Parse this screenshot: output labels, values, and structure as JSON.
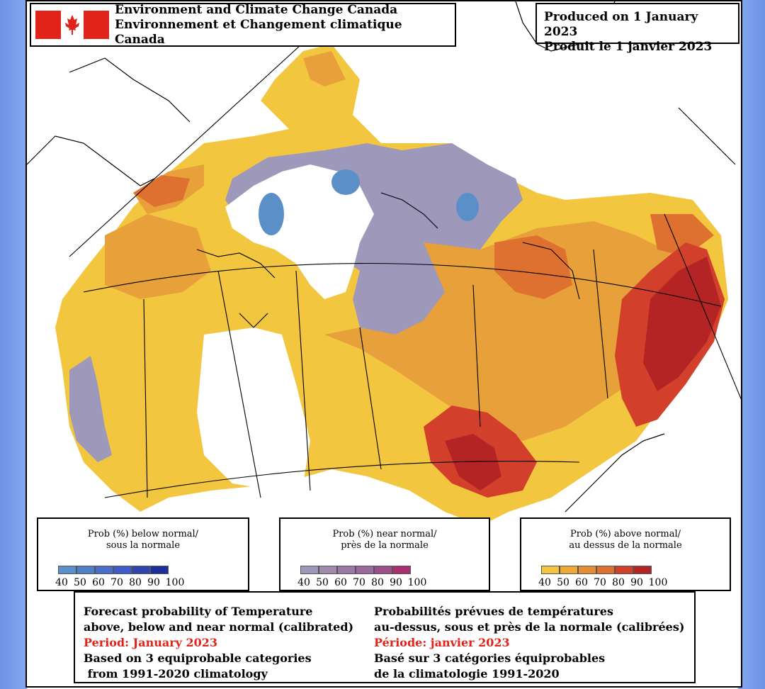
{
  "header": {
    "agency_en": "Environment and Climate Change Canada",
    "agency_fr": "Environnement et Changement climatique Canada",
    "produced_en": "Produced on 1 January 2023",
    "produced_fr": "Produit le 1 janvier 2023"
  },
  "legends": {
    "below": {
      "title_line1": "Prob (%) below normal/",
      "title_line2": "sous la normale",
      "colors": [
        "#5b8fc8",
        "#4f7fc5",
        "#4b6ecb",
        "#3f5acb",
        "#2f46b0",
        "#1c2f9a"
      ],
      "ticks": [
        "40",
        "50",
        "60",
        "70",
        "80",
        "90",
        "100"
      ]
    },
    "near": {
      "title_line1": "Prob (%) near normal/",
      "title_line2": "près de la normale",
      "colors": [
        "#9e98ba",
        "#a08aae",
        "#9c78a6",
        "#9a6a9e",
        "#9a4e8a",
        "#a83070"
      ],
      "ticks": [
        "40",
        "50",
        "60",
        "70",
        "80",
        "90",
        "100"
      ]
    },
    "above": {
      "title_line1": "Prob (%) above normal/",
      "title_line2": "au dessus de la normale",
      "colors": [
        "#f3c640",
        "#eeaa34",
        "#e28f38",
        "#df7130",
        "#d2402c",
        "#b52424"
      ],
      "ticks": [
        "40",
        "50",
        "60",
        "70",
        "80",
        "90",
        "100"
      ]
    }
  },
  "notes": {
    "en": {
      "line1": "Forecast probability of Temperature",
      "line2": "above, below and near normal (calibrated)",
      "period": "Period: January 2023",
      "line4": "Based on 3 equiprobable categories",
      "line5": " from 1991-2020 climatology"
    },
    "fr": {
      "line1": "Probabilités prévues de températures",
      "line2": "au-dessus, sous et près de la normale (calibrées)",
      "period": "Période: janvier 2023",
      "line4": "Basé sur 3 catégories équiprobables",
      "line5": "de la climatologie 1991-2020"
    }
  }
}
